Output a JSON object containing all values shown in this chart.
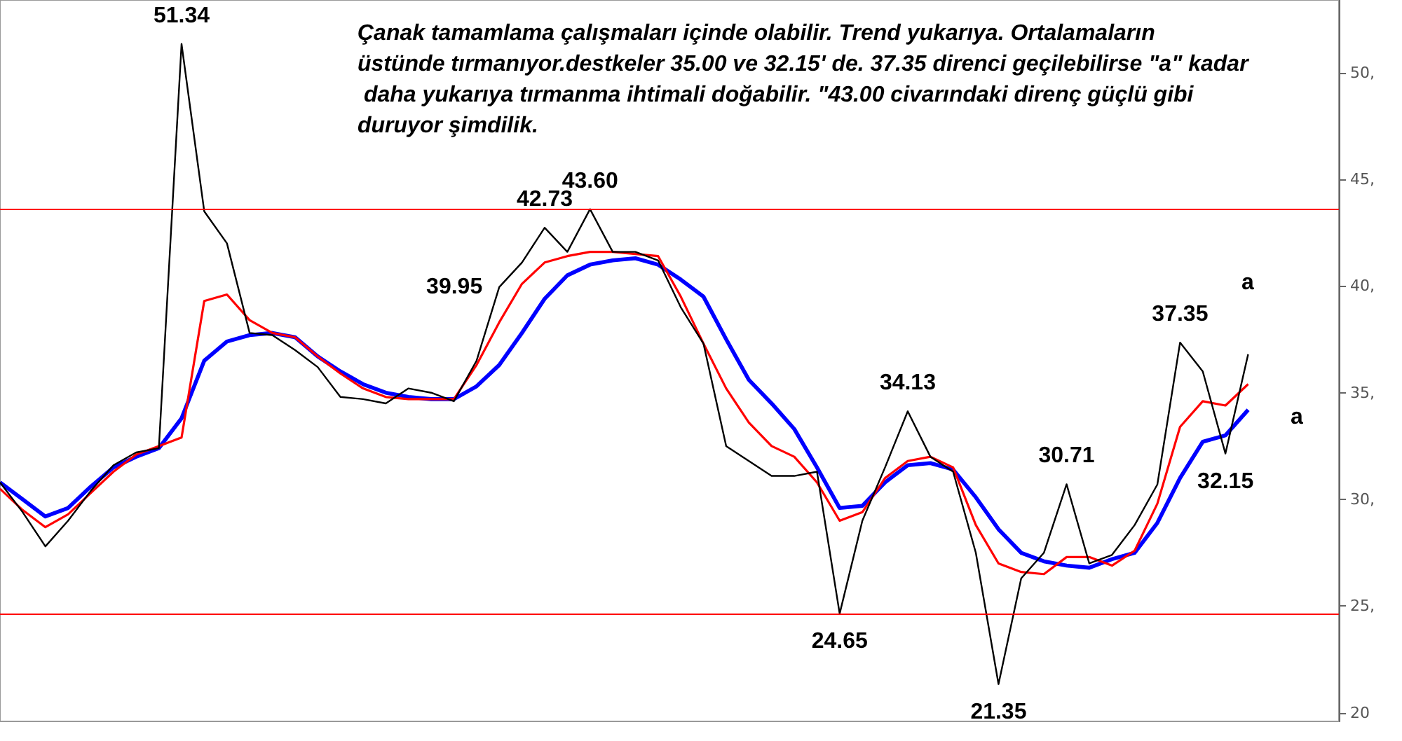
{
  "chart_data": {
    "type": "line",
    "title": "Çanak tamamlama çalışmaları içinde olabilir. Trend yukarıya. Ortalamaların üstünde tırmanıyor.destkeler 35.00 ve 32.15' de. 37.35 direnci geçilebilirse \"a\" kadar daha yukarıya tırmanma ihtimali doğabilir. \"43.00 civarındaki direnç güçlü gibi duruyor şimdilik.",
    "categories": [
      null,
      null,
      null,
      null,
      null,
      null,
      null,
      null,
      null,
      null,
      null,
      null,
      null,
      null,
      null,
      null,
      null,
      null,
      null,
      null,
      null,
      null,
      null,
      null,
      null,
      null,
      null,
      null,
      null,
      null,
      null,
      null,
      null,
      null,
      null,
      null,
      null,
      null,
      null,
      null,
      null,
      null,
      null,
      null,
      null,
      null,
      null,
      null,
      null,
      null,
      null,
      null,
      null,
      null,
      null,
      null,
      null,
      null,
      null,
      null
    ],
    "ylim": [
      19.6,
      53.4
    ],
    "yticks": [
      {
        "value": 20,
        "label": "20"
      },
      {
        "value": 25,
        "label": "25,"
      },
      {
        "value": 30,
        "label": "30,"
      },
      {
        "value": 35,
        "label": "35,"
      },
      {
        "value": 40,
        "label": "40,"
      },
      {
        "value": 45,
        "label": "45,"
      },
      {
        "value": 50,
        "label": "50,"
      }
    ],
    "tick_labels": "y",
    "grid": false,
    "marker": "none",
    "line_style": "solid",
    "series": [
      {
        "color": "#000000",
        "values": [
          30.8,
          29.4,
          27.8,
          29.0,
          30.4,
          31.6,
          32.2,
          32.4,
          51.34,
          43.5,
          42,
          37.8,
          37.7,
          37,
          36.2,
          34.8,
          34.7,
          34.5,
          35.2,
          35,
          34.6,
          36.5,
          39.95,
          41.1,
          42.73,
          41.6,
          43.6,
          41.6,
          41.6,
          41.2,
          39,
          37.3,
          32.5,
          31.8,
          31.1,
          31.1,
          31.3,
          24.65,
          29,
          31.5,
          34.13,
          32,
          31.3,
          27.5,
          21.35,
          26.3,
          27.5,
          30.71,
          27,
          27.4,
          28.8,
          30.7,
          37.35,
          36,
          32.15,
          36.8,
          null,
          null,
          null,
          null
        ],
        "value_labels": [
          null,
          null,
          null,
          null,
          null,
          null,
          null,
          null,
          "51.34",
          null,
          null,
          null,
          null,
          null,
          null,
          null,
          null,
          null,
          null,
          null,
          null,
          null,
          "39.95",
          null,
          "42.73",
          null,
          "43.60",
          null,
          null,
          null,
          null,
          null,
          null,
          null,
          null,
          null,
          null,
          "24.65",
          null,
          null,
          "34.13",
          null,
          null,
          null,
          "21.35",
          null,
          null,
          "30.71",
          null,
          null,
          null,
          null,
          "37.35",
          null,
          "32.15",
          null,
          null,
          null,
          null,
          null
        ]
      },
      {
        "color": "#ff0000",
        "values": [
          30.5,
          29.5,
          28.7,
          29.3,
          30.3,
          31.3,
          32.1,
          32.5,
          32.9,
          39.3,
          39.6,
          38.4,
          37.8,
          37.6,
          36.7,
          35.9,
          35.2,
          34.8,
          34.7,
          34.7,
          34.7,
          36.3,
          38.3,
          40.1,
          41.1,
          41.4,
          41.6,
          41.6,
          41.5,
          41.4,
          39.5,
          37.3,
          35.2,
          33.6,
          32.5,
          32,
          30.8,
          29,
          29.4,
          31,
          31.8,
          32,
          31.5,
          28.8,
          27,
          26.6,
          26.5,
          27.3,
          27.3,
          26.9,
          27.6,
          29.8,
          33.4,
          34.6,
          34.4,
          35.4,
          null,
          null,
          null,
          null
        ]
      },
      {
        "color": "#0000ff",
        "values": [
          30.8,
          30,
          29.2,
          29.6,
          30.6,
          31.5,
          32,
          32.4,
          33.8,
          36.5,
          37.4,
          37.7,
          37.8,
          37.6,
          36.7,
          36,
          35.4,
          35,
          34.8,
          34.7,
          34.7,
          35.3,
          36.3,
          37.8,
          39.4,
          40.5,
          41,
          41.2,
          41.3,
          41,
          40.3,
          39.5,
          37.5,
          35.6,
          34.5,
          33.3,
          31.5,
          29.6,
          29.7,
          30.8,
          31.6,
          31.7,
          31.4,
          30.1,
          28.6,
          27.5,
          27.1,
          26.9,
          26.8,
          27.2,
          27.5,
          28.9,
          31,
          32.7,
          33,
          34.2,
          null,
          null,
          null,
          null
        ]
      }
    ],
    "ref_lines": [
      {
        "axis": "y",
        "value": 43.6,
        "color": "#ff0000"
      },
      {
        "axis": "y",
        "value": 24.65,
        "color": "#ff0000"
      }
    ],
    "annotations": [
      "a",
      "a"
    ]
  }
}
